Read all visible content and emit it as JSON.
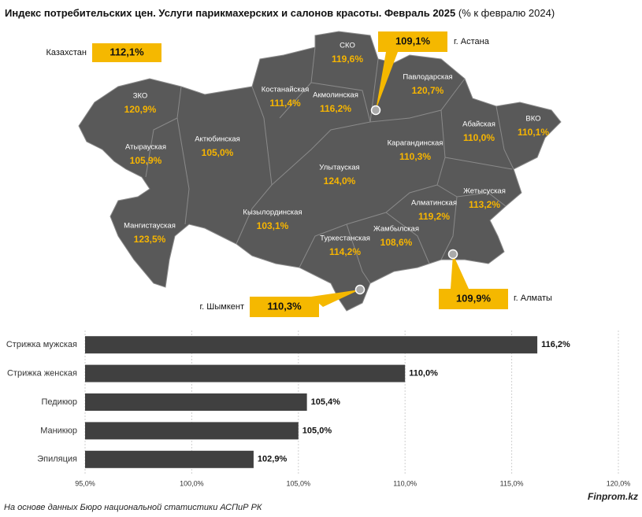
{
  "title": "Индекс потребительских цен. Услуги парикмахерских и салонов красоты. Февраль 2025",
  "subtitle": "(% к февралю 2024)",
  "map": {
    "country": {
      "name": "Казахстан",
      "value": "112,1%"
    },
    "regions": [
      {
        "name": "ЗКО",
        "value": "120,9%"
      },
      {
        "name": "Атырауская",
        "value": "105,9%"
      },
      {
        "name": "Актюбинская",
        "value": "105,0%"
      },
      {
        "name": "Мангистауская",
        "value": "123,5%"
      },
      {
        "name": "Костанайская",
        "value": "111,4%"
      },
      {
        "name": "СКО",
        "value": "119,6%"
      },
      {
        "name": "Акмолинская",
        "value": "116,2%"
      },
      {
        "name": "Павлодарская",
        "value": "120,7%"
      },
      {
        "name": "Абайская",
        "value": "110,0%"
      },
      {
        "name": "ВКО",
        "value": "110,1%"
      },
      {
        "name": "Карагандинская",
        "value": "110,3%"
      },
      {
        "name": "Улытауская",
        "value": "124,0%"
      },
      {
        "name": "Кызылординская",
        "value": "103,1%"
      },
      {
        "name": "Алматинская",
        "value": "119,2%"
      },
      {
        "name": "Жетысуская",
        "value": "113,2%"
      },
      {
        "name": "Жамбылская",
        "value": "108,6%"
      },
      {
        "name": "Туркестанская",
        "value": "114,2%"
      }
    ],
    "cities": [
      {
        "name": "г. Астана",
        "value": "109,1%"
      },
      {
        "name": "г. Шымкент",
        "value": "110,3%"
      },
      {
        "name": "г. Алматы",
        "value": "109,9%"
      }
    ]
  },
  "chart_data": {
    "type": "hbar",
    "categories": [
      "Стрижка мужская",
      "Стрижка женская",
      "Педикюр",
      "Маникюр",
      "Эпиляция"
    ],
    "values": [
      116.2,
      110.0,
      105.4,
      105.0,
      102.9
    ],
    "value_labels": [
      "116,2%",
      "110,0%",
      "105,4%",
      "105,0%",
      "102,9%"
    ],
    "color": "#404040",
    "xlim": [
      95,
      120
    ],
    "xticks": [
      {
        "value": 95,
        "label": "95,0%"
      },
      {
        "value": 100,
        "label": "100,0%"
      },
      {
        "value": 105,
        "label": "105,0%"
      },
      {
        "value": 110,
        "label": "110,0%"
      },
      {
        "value": 115,
        "label": "115,0%"
      },
      {
        "value": 120,
        "label": "120,0%"
      }
    ],
    "grid": true
  },
  "footer": {
    "source": "На основе данных Бюро национальной статистики АСПиР РК",
    "brand": "Finprom.kz"
  }
}
